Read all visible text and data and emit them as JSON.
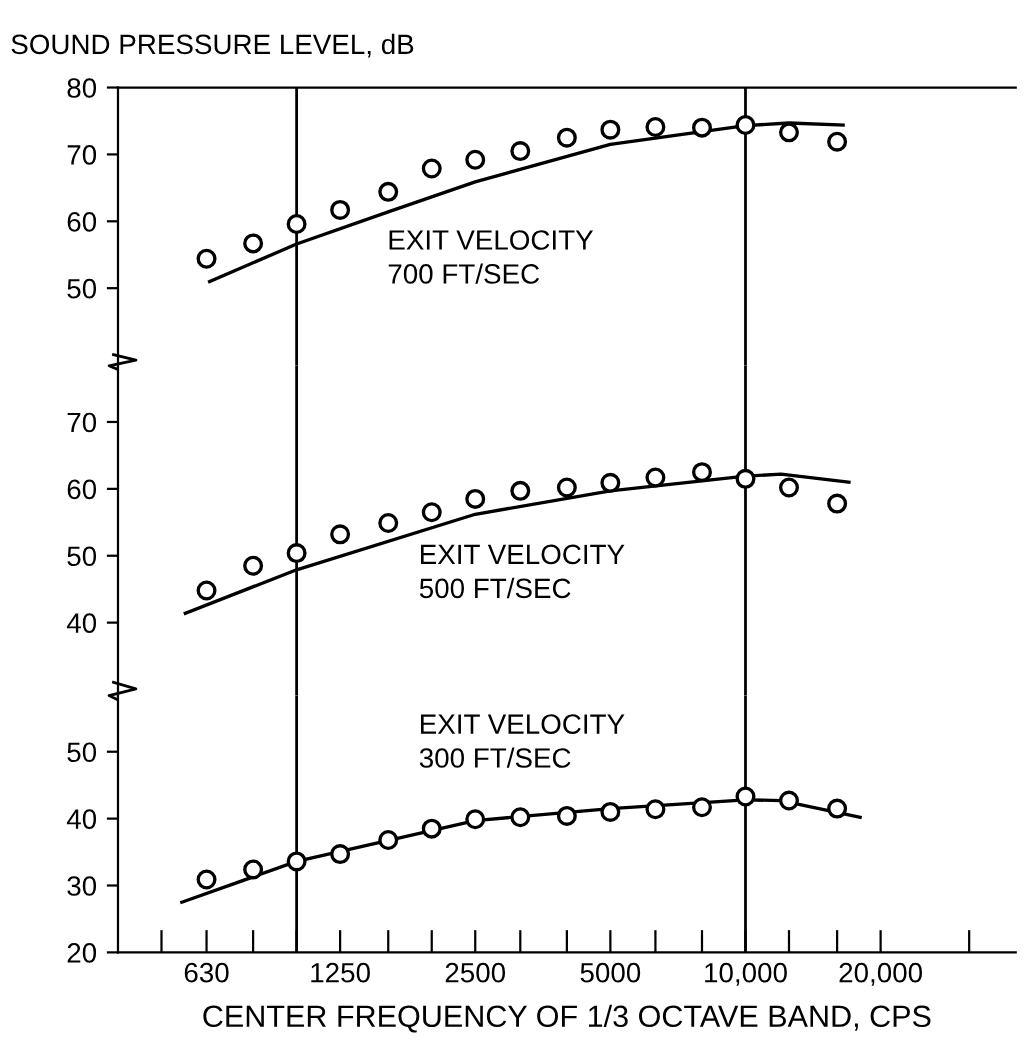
{
  "chart_data": [
    {
      "type": "scatter",
      "ylabel": "SOUND PRESSURE LEVEL, dB",
      "log": "x",
      "xlim": [
        400,
        40000
      ],
      "ylim": [
        38.4,
        80
      ],
      "yticks": [
        50,
        60,
        70,
        80
      ],
      "tick_labels": "y",
      "grid": false,
      "annotations": [
        "EXIT VELOCITY\n700 FT/SEC"
      ],
      "x": [
        630,
        800,
        1000,
        1250,
        1600,
        2000,
        2500,
        3150,
        4000,
        5000,
        6300,
        8000,
        10000,
        12500,
        16000
      ],
      "series": [
        {
          "color": "#000000",
          "marker": "circle",
          "values": [
            54.4,
            56.7,
            59.6,
            61.7,
            64.4,
            67.9,
            69.2,
            70.5,
            72.5,
            73.7,
            74.1,
            74.0,
            74.4,
            73.3,
            71.9
          ]
        },
        {
          "type": "line",
          "color": "#000000",
          "marker": "none",
          "x": [
            640,
            1000,
            1600,
            2500,
            5000,
            10000,
            12500,
            16500
          ],
          "values": [
            51.0,
            56.6,
            61.4,
            65.9,
            71.5,
            74.3,
            74.7,
            74.4
          ]
        }
      ],
      "ref_lines": [
        {
          "axis": "x",
          "value": 1000,
          "color": "#000000"
        },
        {
          "axis": "x",
          "value": 10000,
          "color": "#000000"
        }
      ]
    },
    {
      "type": "scatter",
      "log": "x",
      "xlim": [
        400,
        40000
      ],
      "ylim": [
        29.1,
        78.4
      ],
      "yticks": [
        40,
        50,
        60,
        70
      ],
      "tick_labels": "y",
      "grid": false,
      "annotations": [
        "EXIT VELOCITY\n500 FT/SEC"
      ],
      "x": [
        630,
        800,
        1000,
        1250,
        1600,
        2000,
        2500,
        3150,
        4000,
        5000,
        6300,
        8000,
        10000,
        12500,
        16000
      ],
      "series": [
        {
          "color": "#000000",
          "marker": "circle",
          "values": [
            44.8,
            48.5,
            50.4,
            53.2,
            54.9,
            56.5,
            58.5,
            59.7,
            60.2,
            60.9,
            61.7,
            62.5,
            61.5,
            60.2,
            57.8
          ]
        },
        {
          "type": "line",
          "color": "#000000",
          "marker": "none",
          "x": [
            565,
            1000,
            2500,
            5000,
            10000,
            12000,
            17000
          ],
          "values": [
            41.4,
            47.9,
            56.2,
            59.7,
            61.9,
            62.2,
            61.0
          ]
        }
      ],
      "ref_lines": [
        {
          "axis": "x",
          "value": 1000,
          "color": "#000000"
        },
        {
          "axis": "x",
          "value": 10000,
          "color": "#000000"
        }
      ]
    },
    {
      "type": "scatter",
      "xlabel": "CENTER FREQUENCY OF 1/3 OCTAVE BAND, CPS",
      "log": "x",
      "xlim": [
        400,
        40000
      ],
      "ylim": [
        20,
        58.4
      ],
      "yticks": [
        20,
        30,
        40,
        50
      ],
      "grid": false,
      "annotations": [
        "EXIT VELOCITY\n300 FT/SEC"
      ],
      "xticks": [
        {
          "value": 500,
          "label": null
        },
        {
          "value": 630,
          "label": "630"
        },
        {
          "value": 800,
          "label": null
        },
        {
          "value": 1000,
          "label": null
        },
        {
          "value": 1250,
          "label": "1250"
        },
        {
          "value": 1600,
          "label": null
        },
        {
          "value": 2000,
          "label": null
        },
        {
          "value": 2500,
          "label": "2500"
        },
        {
          "value": 3150,
          "label": null
        },
        {
          "value": 4000,
          "label": null
        },
        {
          "value": 5000,
          "label": "5000"
        },
        {
          "value": 6300,
          "label": null
        },
        {
          "value": 8000,
          "label": null
        },
        {
          "value": 10000,
          "label": "10,000"
        },
        {
          "value": 12500,
          "label": null
        },
        {
          "value": 16000,
          "label": null
        },
        {
          "value": 20000,
          "label": "20,000"
        },
        {
          "value": 31500,
          "label": null
        }
      ],
      "x": [
        630,
        800,
        1000,
        1250,
        1600,
        2000,
        2500,
        3150,
        4000,
        5000,
        6300,
        8000,
        10000,
        12500,
        16000
      ],
      "series": [
        {
          "color": "#000000",
          "marker": "circle",
          "values": [
            30.9,
            32.4,
            33.6,
            34.7,
            36.8,
            38.5,
            39.9,
            40.2,
            40.4,
            41.0,
            41.4,
            41.7,
            43.3,
            42.7,
            41.5
          ]
        },
        {
          "type": "line",
          "color": "#000000",
          "marker": "none",
          "x": [
            555,
            1000,
            2500,
            5000,
            10000,
            12000,
            18000
          ],
          "values": [
            27.5,
            33.6,
            39.7,
            41.5,
            42.8,
            42.7,
            40.2
          ]
        }
      ],
      "ref_lines": [
        {
          "axis": "x",
          "value": 1000,
          "color": "#000000"
        },
        {
          "axis": "x",
          "value": 10000,
          "color": "#000000"
        }
      ]
    }
  ]
}
